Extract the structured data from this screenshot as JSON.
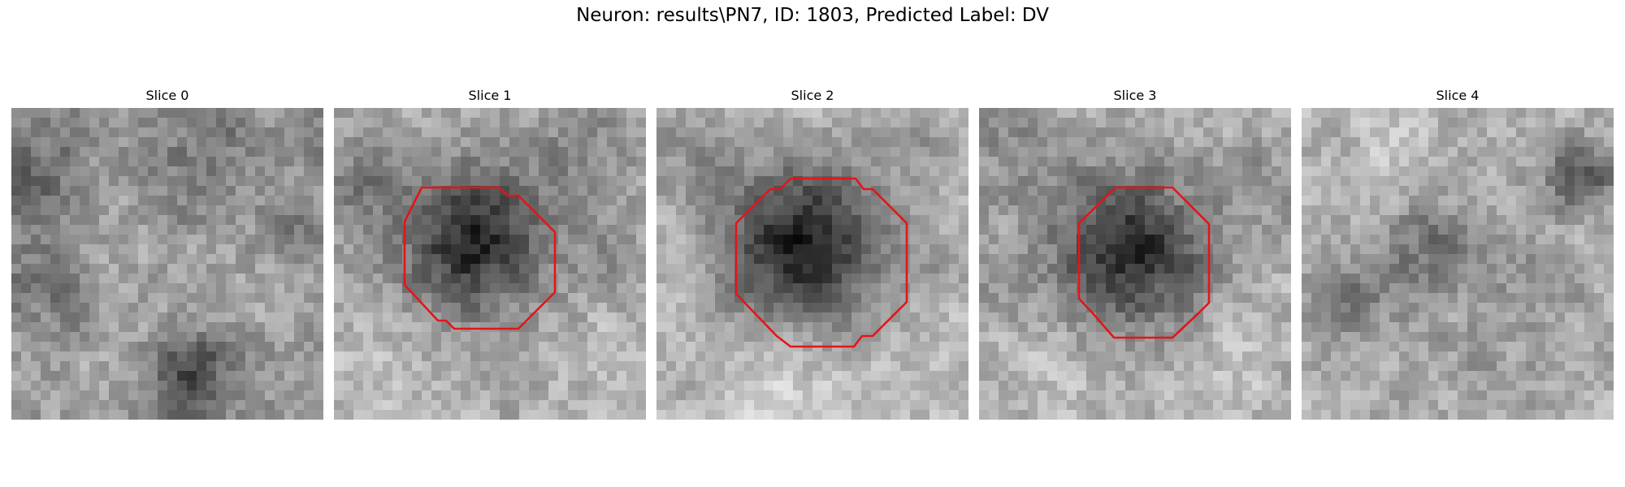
{
  "figure": {
    "title": "Neuron: results\\PN7, ID: 1803, Predicted Label: DV"
  },
  "slices": [
    {
      "title": "Slice 0",
      "has_contour": false
    },
    {
      "title": "Slice 1",
      "has_contour": true
    },
    {
      "title": "Slice 2",
      "has_contour": true
    },
    {
      "title": "Slice 3",
      "has_contour": true
    },
    {
      "title": "Slice 4",
      "has_contour": false
    }
  ],
  "colors": {
    "contour": "#e3151a",
    "background": "#ffffff"
  }
}
